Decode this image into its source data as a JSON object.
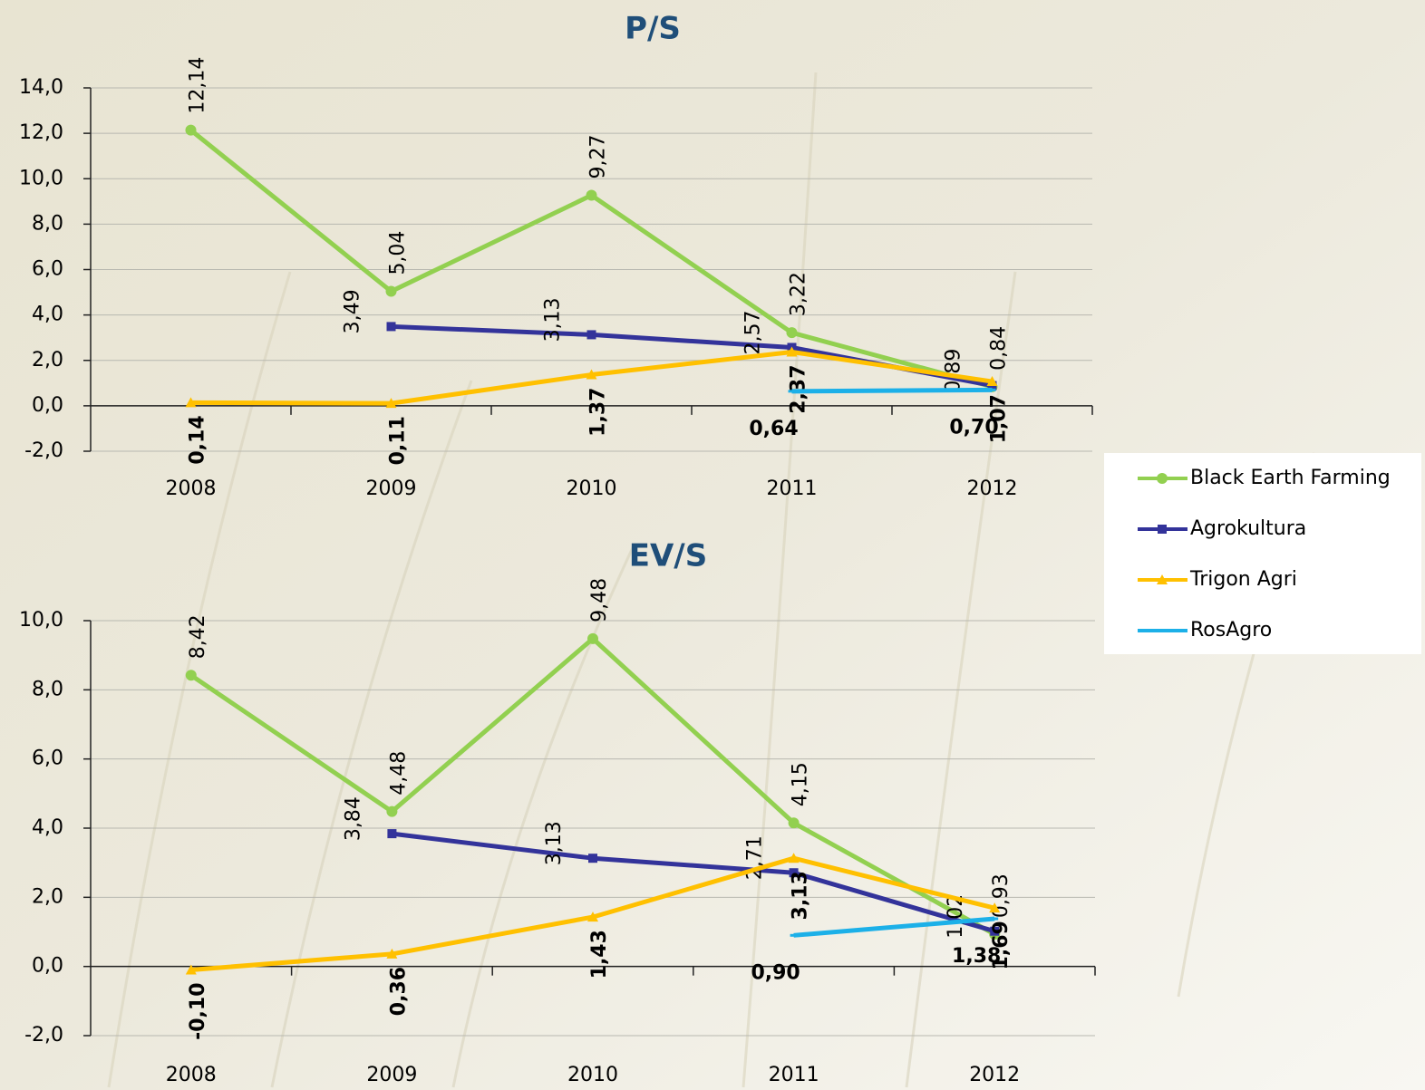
{
  "chart_data": [
    {
      "type": "line",
      "title": "P/S",
      "categories": [
        "2008",
        "2009",
        "2010",
        "2011",
        "2012"
      ],
      "series": [
        {
          "name": "Black Earth Farming",
          "color": "#92d050",
          "values": [
            12.14,
            5.04,
            9.27,
            3.22,
            0.84
          ],
          "value_labels": [
            "12,14",
            "5,04",
            "9,27",
            "3,22",
            "0,84"
          ]
        },
        {
          "name": "Agrokultura",
          "color": "#33339a",
          "values": [
            null,
            3.49,
            3.13,
            2.57,
            0.89
          ],
          "value_labels": [
            null,
            "3,49",
            "3,13",
            "2,57",
            "0,89"
          ]
        },
        {
          "name": "Trigon Agri",
          "color": "#ffc000",
          "values": [
            0.14,
            0.11,
            1.37,
            2.37,
            1.07
          ],
          "value_labels": [
            "0,14",
            "0,11",
            "1,37",
            "2,37",
            "1,07"
          ]
        },
        {
          "name": "RosAgro",
          "color": "#1cb0e8",
          "values": [
            null,
            null,
            null,
            0.64,
            0.7
          ],
          "value_labels": [
            null,
            null,
            null,
            "0,64",
            "0,70"
          ]
        }
      ],
      "ylim": [
        -2,
        14
      ],
      "yticks": [
        {
          "value": -2,
          "label": "-2,0"
        },
        {
          "value": 0,
          "label": "0,0"
        },
        {
          "value": 2,
          "label": "2,0"
        },
        {
          "value": 4,
          "label": "4,0"
        },
        {
          "value": 6,
          "label": "6,0"
        },
        {
          "value": 8,
          "label": "8,0"
        },
        {
          "value": 10,
          "label": "10,0"
        },
        {
          "value": 12,
          "label": "12,0"
        },
        {
          "value": 14,
          "label": "14,0"
        }
      ],
      "grid": true,
      "legend": "right"
    },
    {
      "type": "line",
      "title": "EV/S",
      "categories": [
        "2008",
        "2009",
        "2010",
        "2011",
        "2012"
      ],
      "series": [
        {
          "name": "Black Earth Farming",
          "color": "#92d050",
          "values": [
            8.42,
            4.48,
            9.48,
            4.15,
            0.93
          ],
          "value_labels": [
            "8,42",
            "4,48",
            "9,48",
            "4,15",
            "0,93"
          ]
        },
        {
          "name": "Agrokultura",
          "color": "#33339a",
          "values": [
            null,
            3.84,
            3.13,
            2.71,
            1.02
          ],
          "value_labels": [
            null,
            "3,84",
            "3,13",
            "2,71",
            "1,02"
          ]
        },
        {
          "name": "Trigon Agri",
          "color": "#ffc000",
          "values": [
            -0.1,
            0.36,
            1.43,
            3.13,
            1.69
          ],
          "value_labels": [
            "-0,10",
            "0,36",
            "1,43",
            "3,13",
            "1,69"
          ]
        },
        {
          "name": "RosAgro",
          "color": "#1cb0e8",
          "values": [
            null,
            null,
            null,
            0.9,
            1.38
          ],
          "value_labels": [
            null,
            null,
            null,
            "0,90",
            "1,38"
          ]
        }
      ],
      "ylim": [
        -2,
        10
      ],
      "yticks": [
        {
          "value": -2,
          "label": "-2,0"
        },
        {
          "value": 0,
          "label": "0,0"
        },
        {
          "value": 2,
          "label": "2,0"
        },
        {
          "value": 4,
          "label": "4,0"
        },
        {
          "value": 6,
          "label": "6,0"
        },
        {
          "value": 8,
          "label": "8,0"
        },
        {
          "value": 10,
          "label": "10,0"
        }
      ],
      "grid": true
    }
  ]
}
